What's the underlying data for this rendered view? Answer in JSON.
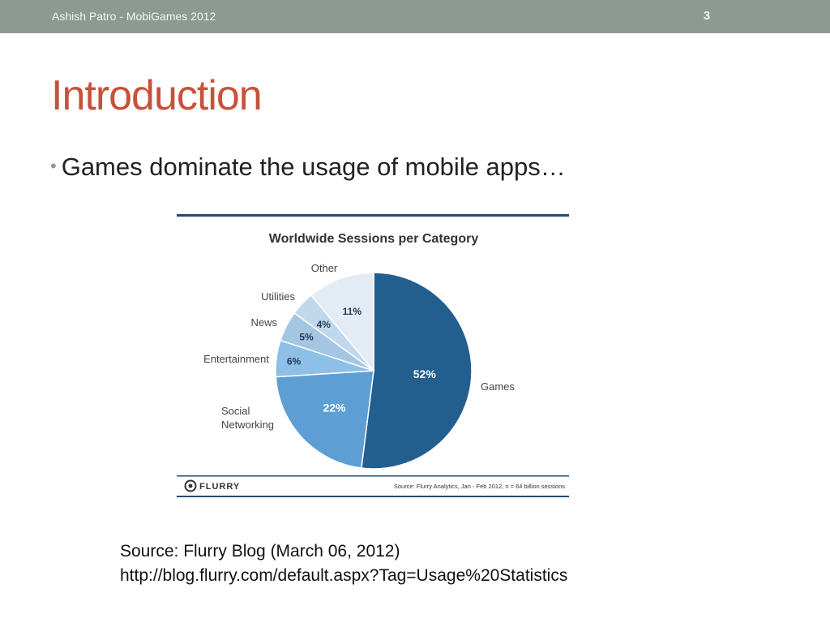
{
  "header": {
    "author": "Ashish Patro - MobiGames 2012",
    "page_number": "3"
  },
  "slide": {
    "title": "Introduction",
    "bullets": [
      "Games dominate the usage of mobile apps…"
    ]
  },
  "chart_footer": {
    "logo_text": "FLURRY",
    "source_note": "Source: Flurry Analytics, Jan - Feb 2012, n = 64 billion sessions"
  },
  "source": {
    "line1": "Source: Flurry Blog (March 06, 2012)",
    "line2": "http://blog.flurry.com/default.aspx?Tag=Usage%20Statistics"
  },
  "colors": {
    "header_bar": "#8d9a92",
    "title": "#c9503a",
    "chart_rule": "#254a6d"
  },
  "chart_data": {
    "type": "pie",
    "title": "Worldwide Sessions per Category",
    "start_angle_deg": 0,
    "direction": "clockwise",
    "slices": [
      {
        "label": "Games",
        "value": 52,
        "value_label": "52%",
        "color": "#235f8e",
        "text_color": "#ffffff"
      },
      {
        "label": "Social\nNetworking",
        "value": 22,
        "value_label": "22%",
        "color": "#5d9fd5",
        "text_color": "#ffffff"
      },
      {
        "label": "Entertainment",
        "value": 6,
        "value_label": "6%",
        "color": "#8ebfe6",
        "text_color": "#1f3a55"
      },
      {
        "label": "News",
        "value": 5,
        "value_label": "5%",
        "color": "#a5c6e2",
        "text_color": "#1f3a55"
      },
      {
        "label": "Utilities",
        "value": 4,
        "value_label": "4%",
        "color": "#c1d8ec",
        "text_color": "#1f3a55"
      },
      {
        "label": "Other",
        "value": 11,
        "value_label": "11%",
        "color": "#e3ecf5",
        "text_color": "#1f3a55"
      }
    ]
  }
}
